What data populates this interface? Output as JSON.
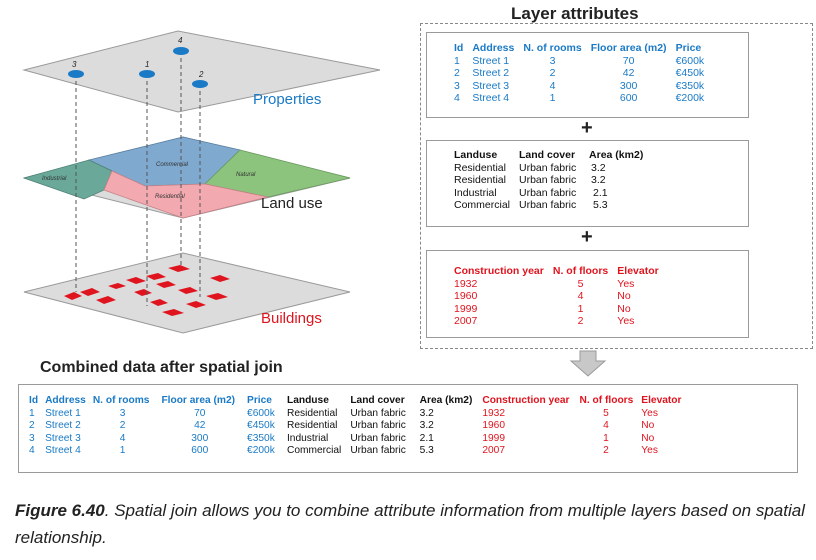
{
  "layers": {
    "properties_label": "Properties",
    "landuse_label": "Land use",
    "buildings_label": "Buildings",
    "point_labels": [
      "1",
      "2",
      "3",
      "4"
    ],
    "zone_labels": {
      "industrial": "Industrial",
      "commercial": "Commercial",
      "natural": "Natural",
      "residential": "Residential"
    }
  },
  "attributes_title": "Layer attributes",
  "plus": "+",
  "properties_table": {
    "headers": [
      "Id",
      "Address",
      "N. of rooms",
      "Floor area (m2)",
      "Price"
    ],
    "rows": [
      [
        "1",
        "Street 1",
        "3",
        "70",
        "€600k"
      ],
      [
        "2",
        "Street 2",
        "2",
        "42",
        "€450k"
      ],
      [
        "3",
        "Street 3",
        "4",
        "300",
        "€350k"
      ],
      [
        "4",
        "Street 4",
        "1",
        "600",
        "€200k"
      ]
    ]
  },
  "landuse_table": {
    "headers": [
      "Landuse",
      "Land cover",
      "Area (km2)"
    ],
    "rows": [
      [
        "Residential",
        "Urban fabric",
        "3.2"
      ],
      [
        "Residential",
        "Urban fabric",
        "3.2"
      ],
      [
        "Industrial",
        "Urban fabric",
        "2.1"
      ],
      [
        "Commercial",
        "Urban fabric",
        "5.3"
      ]
    ]
  },
  "buildings_table": {
    "headers": [
      "Construction year",
      "N. of floors",
      "Elevator"
    ],
    "rows": [
      [
        "1932",
        "5",
        "Yes"
      ],
      [
        "1960",
        "4",
        "No"
      ],
      [
        "1999",
        "1",
        "No"
      ],
      [
        "2007",
        "2",
        "Yes"
      ]
    ]
  },
  "combined_title": "Combined data after spatial join",
  "combined_table": {
    "headers": [
      "Id",
      "Address",
      "N. of rooms",
      "Floor area (m2)",
      "Price",
      "Landuse",
      "Land cover",
      "Area (km2)",
      "Construction year",
      "N. of floors",
      "Elevator"
    ],
    "rows": [
      [
        "1",
        "Street 1",
        "3",
        "70",
        "€600k",
        "Residential",
        "Urban fabric",
        "3.2",
        "1932",
        "5",
        "Yes"
      ],
      [
        "2",
        "Street 2",
        "2",
        "42",
        "€450k",
        "Residential",
        "Urban fabric",
        "3.2",
        "1960",
        "4",
        "No"
      ],
      [
        "3",
        "Street 3",
        "4",
        "300",
        "€350k",
        "Industrial",
        "Urban fabric",
        "2.1",
        "1999",
        "1",
        "No"
      ],
      [
        "4",
        "Street 4",
        "1",
        "600",
        "€200k",
        "Commercial",
        "Urban fabric",
        "5.3",
        "2007",
        "2",
        "Yes"
      ]
    ]
  },
  "caption": {
    "figure": "Figure 6.40",
    "text": ". Spatial join allows you to combine attribute information from multiple layers based on spatial relationship."
  },
  "colors": {
    "blue": "#1a7ac6",
    "red": "#e0141e",
    "plane": "#d9d9d9",
    "industrial": "#6aa89a",
    "commercial": "#7fa9cf",
    "natural": "#8cc47e",
    "residential": "#f2aab0"
  }
}
